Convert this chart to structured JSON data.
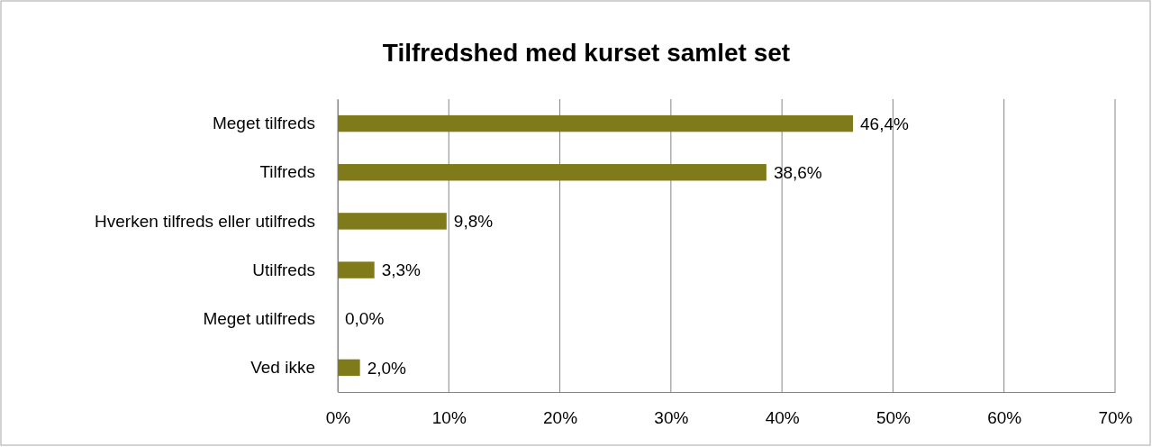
{
  "chart_data": {
    "type": "bar",
    "orientation": "horizontal",
    "title": "Tilfredshed med kurset samlet set",
    "categories": [
      "Meget tilfreds",
      "Tilfreds",
      "Hverken tilfreds eller utilfreds",
      "Utilfreds",
      "Meget utilfreds",
      "Ved ikke"
    ],
    "values": [
      46.4,
      38.6,
      9.8,
      3.3,
      0.0,
      2.0
    ],
    "value_labels": [
      "46,4%",
      "38,6%",
      "9,8%",
      "3,3%",
      "0,0%",
      "2,0%"
    ],
    "color": "#7f7a1a",
    "xlim": [
      0,
      70
    ],
    "xticks": [
      {
        "value": 0,
        "label": "0%"
      },
      {
        "value": 10,
        "label": "10%"
      },
      {
        "value": 20,
        "label": "20%"
      },
      {
        "value": 30,
        "label": "30%"
      },
      {
        "value": 40,
        "label": "40%"
      },
      {
        "value": 50,
        "label": "50%"
      },
      {
        "value": 60,
        "label": "60%"
      },
      {
        "value": 70,
        "label": "70%"
      }
    ],
    "grid": "x"
  }
}
